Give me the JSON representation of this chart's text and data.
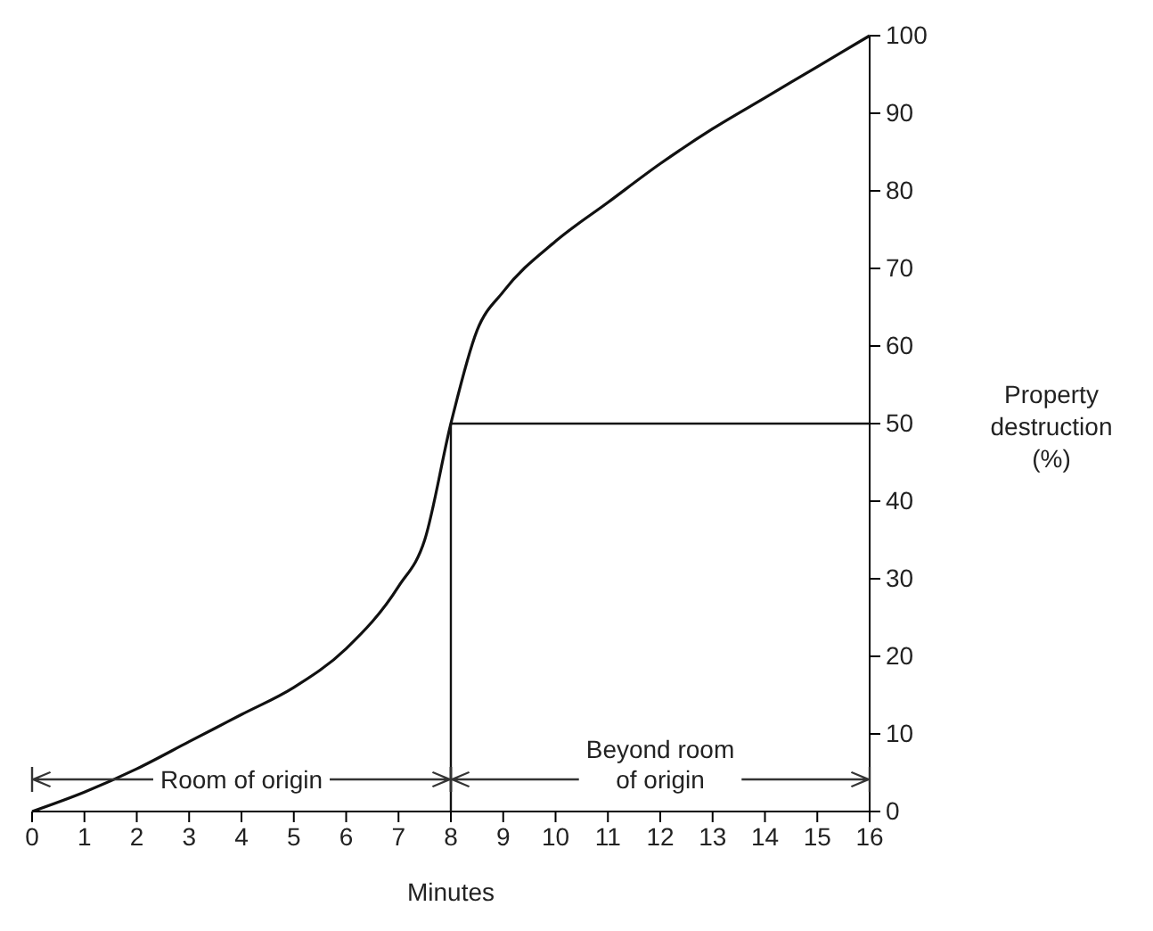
{
  "chart_data": {
    "type": "line",
    "xlabel": "Minutes",
    "ylabel": "Property destruction (%)",
    "x": [
      0,
      1,
      2,
      3,
      4,
      5,
      6,
      7,
      7.5,
      8,
      8.5,
      9,
      10,
      11,
      12,
      13,
      14,
      15,
      16
    ],
    "series": [
      {
        "color": "#111111",
        "values": [
          0,
          2.5,
          5.5,
          9,
          12.5,
          16,
          21,
          29,
          35,
          50,
          62,
          67,
          73.5,
          78.5,
          83.5,
          88,
          92,
          96,
          100
        ]
      }
    ],
    "xlim": [
      0,
      16
    ],
    "xticks": [
      0,
      1,
      2,
      3,
      4,
      5,
      6,
      7,
      8,
      9,
      10,
      11,
      12,
      13,
      14,
      15,
      16
    ],
    "ylim": [
      0,
      100
    ],
    "yticks": [
      0,
      10,
      20,
      30,
      40,
      50,
      60,
      70,
      80,
      90,
      100
    ],
    "grid": false,
    "marker": "none",
    "line_style": "solid",
    "ref_lines": [
      {
        "axis": "x",
        "value": 8,
        "color": "#111111"
      },
      {
        "axis": "y",
        "value": 50,
        "color": "#111111"
      }
    ],
    "annotations": [
      "Room of origin",
      "Beyond room\nof origin"
    ]
  }
}
